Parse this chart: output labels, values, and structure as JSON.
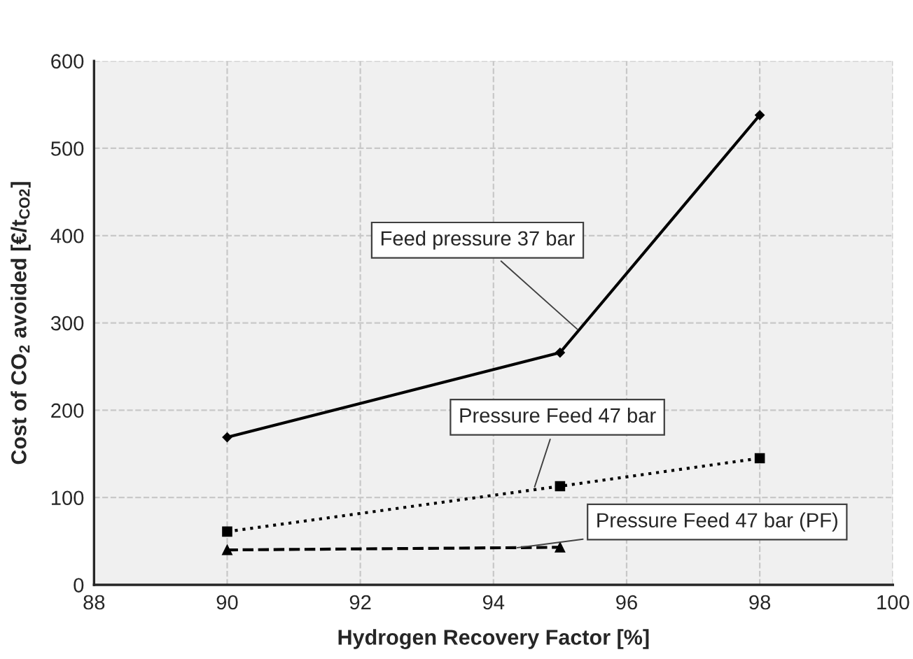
{
  "chart_data": {
    "type": "line",
    "xlabel": "Hydrogen Recovery Factor [%]",
    "ylabel": "Cost of CO$_{2}$ avoided [€/t$_{CO2}$]",
    "series": [
      {
        "color": "#000000",
        "x": [
          90,
          95,
          98
        ],
        "values": [
          169,
          266,
          538
        ],
        "marker": "diamond",
        "line_style": "solid"
      },
      {
        "color": "#000000",
        "x": [
          90,
          95,
          98
        ],
        "values": [
          61,
          113,
          145
        ],
        "marker": "square",
        "line_style": "dotted"
      },
      {
        "color": "#000000",
        "x": [
          90,
          95
        ],
        "values": [
          40,
          43
        ],
        "marker": "triangle",
        "line_style": "dashed"
      }
    ],
    "annotations": [
      {
        "text": "Feed pressure 37 bar",
        "x": 95.3,
        "y": 290
      },
      {
        "text": "Pressure Feed 47 bar",
        "x": 94.6,
        "y": 108
      },
      {
        "text": "Pressure Feed 47 bar (PF)",
        "x": 94.3,
        "y": 42
      }
    ],
    "xlim": [
      88,
      100
    ],
    "xticks": [
      88,
      90,
      92,
      94,
      96,
      98,
      100
    ],
    "ylim": [
      0,
      600
    ],
    "yticks": [
      0,
      100,
      200,
      300,
      400,
      500,
      600
    ],
    "grid": true,
    "legend": false
  }
}
